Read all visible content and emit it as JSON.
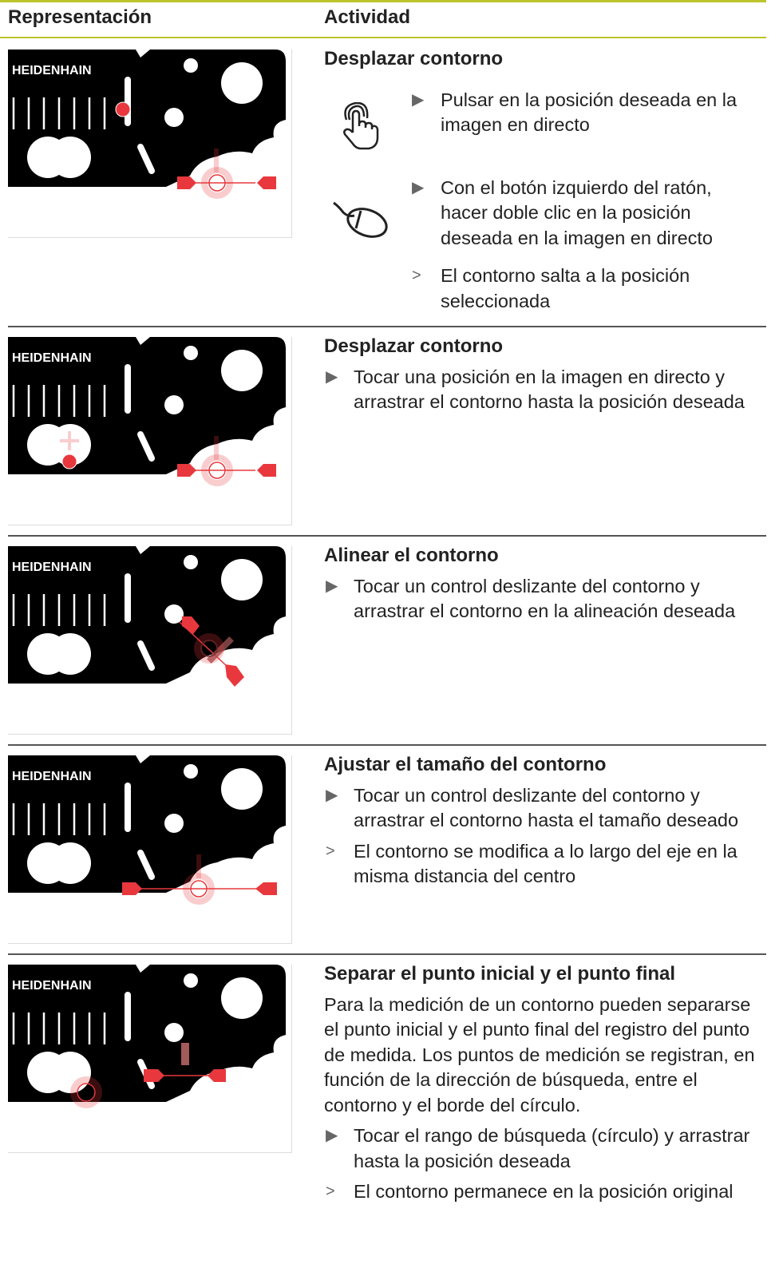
{
  "header": {
    "col1": "Representación",
    "col2": "Actividad"
  },
  "rows": [
    {
      "image_text": "HEIDENHAIN",
      "title": "Desplazar contorno",
      "steps": [
        {
          "marker": "▶",
          "text": "Pulsar en la posición deseada en la imagen en directo"
        },
        {
          "marker": "▶",
          "text": "Con el botón izquierdo del ratón, hacer doble clic en la posición deseada en la imagen en directo"
        },
        {
          "marker": ">",
          "text": "El contorno salta a la posición seleccionada"
        }
      ]
    },
    {
      "image_text": "HEIDENHAIN",
      "title": "Desplazar contorno",
      "steps": [
        {
          "marker": "▶",
          "text": "Tocar una posición en la imagen en directo y arrastrar el contorno hasta la posición deseada"
        }
      ]
    },
    {
      "image_text": "HEIDENHAIN",
      "title": "Alinear el contorno",
      "steps": [
        {
          "marker": "▶",
          "text": "Tocar un control deslizante del contorno y arrastrar el contorno en la alineación deseada"
        }
      ]
    },
    {
      "image_text": "HEIDENHAIN",
      "title": "Ajustar el tamaño del contorno",
      "steps": [
        {
          "marker": "▶",
          "text": "Tocar un control deslizante del contorno y arrastrar el contorno hasta el tamaño deseado"
        },
        {
          "marker": ">",
          "text": "El contorno se modifica a lo largo del eje en la misma distancia del centro"
        }
      ]
    },
    {
      "image_text": "HEIDENHAIN",
      "title": "Separar el punto inicial y el punto final",
      "paragraph": "Para la medición de un contorno pueden separarse el punto inicial y el punto final del registro del punto de medida. Los puntos de medición se registran, en función de la dirección de búsqueda, entre el contorno y el borde del círculo.",
      "steps": [
        {
          "marker": "▶",
          "text": "Tocar el rango de búsqueda (círculo) y arrastrar hasta la posición deseada"
        },
        {
          "marker": ">",
          "text": "El contorno permanece en la posición original"
        }
      ]
    }
  ]
}
